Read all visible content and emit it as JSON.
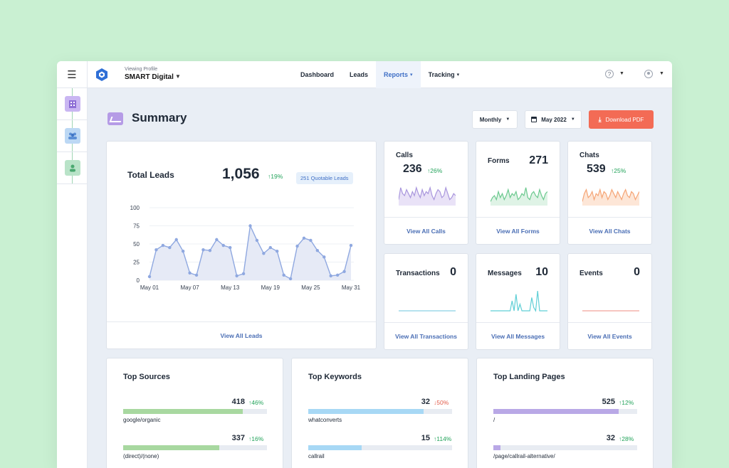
{
  "header": {
    "profile_caption": "Viewing Profile",
    "profile_name": "SMART Digital",
    "nav": [
      {
        "label": "Dashboard",
        "active": false,
        "caret": false
      },
      {
        "label": "Leads",
        "active": false,
        "caret": false
      },
      {
        "label": "Reports",
        "active": true,
        "caret": true
      },
      {
        "label": "Tracking",
        "active": false,
        "caret": true
      }
    ],
    "help_glyph": "?"
  },
  "sidebar": {
    "items": [
      {
        "icon": "building-icon",
        "color": "#c9b6f2"
      },
      {
        "icon": "users-icon",
        "color": "#bcd8f4"
      },
      {
        "icon": "user-icon",
        "color": "#b9e3c8"
      }
    ]
  },
  "summary": {
    "title": "Summary",
    "period_select": "Monthly",
    "date_select": "May 2022",
    "download_label": "Download PDF"
  },
  "total_leads": {
    "title": "Total Leads",
    "value": "1,056",
    "delta": "↑19%",
    "badge": "251 Quotable Leads",
    "footer": "View All Leads"
  },
  "chart_data": {
    "type": "area",
    "x": [
      "May 01",
      "May 02",
      "May 03",
      "May 04",
      "May 05",
      "May 06",
      "May 07",
      "May 08",
      "May 09",
      "May 10",
      "May 11",
      "May 12",
      "May 13",
      "May 14",
      "May 15",
      "May 16",
      "May 17",
      "May 18",
      "May 19",
      "May 20",
      "May 21",
      "May 22",
      "May 23",
      "May 24",
      "May 25",
      "May 26",
      "May 27",
      "May 28",
      "May 29",
      "May 30",
      "May 31"
    ],
    "xticks": [
      "May 01",
      "May 07",
      "May 13",
      "May 19",
      "May 25",
      "May 31"
    ],
    "values": [
      5,
      42,
      48,
      45,
      56,
      40,
      10,
      7,
      42,
      41,
      56,
      48,
      45,
      6,
      9,
      75,
      55,
      37,
      45,
      40,
      7,
      2,
      47,
      58,
      55,
      41,
      32,
      6,
      7,
      12,
      48
    ],
    "yticks": [
      "0",
      "25",
      "50",
      "75",
      "100"
    ],
    "ylim": [
      0,
      100
    ],
    "color": "#8fa8e0",
    "fill": "#e6eaf6",
    "grid": true
  },
  "metrics": [
    {
      "title": "Calls",
      "value": "236",
      "delta": "↑26%",
      "footer": "View All Calls",
      "color": "#a996dd",
      "fill": "#e9e2f7",
      "spark": [
        3,
        9,
        6,
        5,
        8,
        6,
        4,
        7,
        5,
        9,
        6,
        4,
        8,
        5,
        7,
        6,
        9,
        5,
        3,
        6,
        8,
        7,
        4,
        5,
        9,
        6,
        3,
        4,
        6,
        5
      ]
    },
    {
      "title": "Forms",
      "value": "271",
      "delta": "",
      "footer": "View All Forms",
      "color": "#6cc98f",
      "fill": "#dff3e6",
      "spark": [
        2,
        4,
        5,
        3,
        7,
        4,
        6,
        3,
        5,
        8,
        4,
        6,
        5,
        7,
        3,
        4,
        6,
        5,
        9,
        4,
        3,
        6,
        7,
        5,
        4,
        8,
        5,
        3,
        6,
        7
      ]
    },
    {
      "title": "Chats",
      "value": "539",
      "delta": "↑25%",
      "footer": "View All Chats",
      "color": "#f5a576",
      "fill": "#fde6d7",
      "spark": [
        2,
        6,
        8,
        4,
        5,
        7,
        3,
        6,
        5,
        8,
        4,
        7,
        6,
        3,
        5,
        8,
        6,
        4,
        7,
        5,
        3,
        6,
        8,
        5,
        4,
        7,
        6,
        3,
        5,
        7
      ]
    },
    {
      "title": "Transactions",
      "value": "0",
      "delta": "",
      "footer": "View All Transactions",
      "color": "#8bd0e3",
      "fill": "#ffffff",
      "spark": [
        0,
        0,
        0,
        0,
        0,
        0,
        0,
        0,
        0,
        0,
        0,
        0,
        0,
        0,
        0,
        0,
        0,
        0,
        0,
        0,
        0,
        0,
        0,
        0,
        0,
        0,
        0,
        0,
        0,
        0
      ]
    },
    {
      "title": "Messages",
      "value": "10",
      "delta": "",
      "footer": "View All Messages",
      "color": "#5fcfd6",
      "fill": "#ffffff",
      "spark": [
        0,
        0,
        0,
        0,
        0,
        0,
        0,
        0,
        0,
        0,
        0,
        3,
        0,
        5,
        0,
        2,
        0,
        0,
        0,
        0,
        0,
        4,
        1,
        0,
        6,
        0,
        0,
        0,
        0,
        0
      ]
    },
    {
      "title": "Events",
      "value": "0",
      "delta": "",
      "footer": "View All Events",
      "color": "#f2a59a",
      "fill": "#ffffff",
      "spark": [
        0,
        0,
        0,
        0,
        0,
        0,
        0,
        0,
        0,
        0,
        0,
        0,
        0,
        0,
        0,
        0,
        0,
        0,
        0,
        0,
        0,
        0,
        0,
        0,
        0,
        0,
        0,
        0,
        0,
        0
      ]
    }
  ],
  "lists": [
    {
      "title": "Top Sources",
      "color": "#a8d8a0",
      "rows": [
        {
          "value": "418",
          "delta": "↑46%",
          "dir": "up",
          "label": "google/organic",
          "fraction": 0.83
        },
        {
          "value": "337",
          "delta": "↑16%",
          "dir": "up",
          "label": "(direct)/(none)",
          "fraction": 0.67
        }
      ]
    },
    {
      "title": "Top Keywords",
      "color": "#a7d8f5",
      "rows": [
        {
          "value": "32",
          "delta": "↓50%",
          "dir": "down",
          "label": "whatconverts",
          "fraction": 0.8
        },
        {
          "value": "15",
          "delta": "↑114%",
          "dir": "up",
          "label": "callrail",
          "fraction": 0.37
        }
      ]
    },
    {
      "title": "Top Landing Pages",
      "color": "#b9a8e6",
      "rows": [
        {
          "value": "525",
          "delta": "↑12%",
          "dir": "up",
          "label": "/",
          "fraction": 0.87
        },
        {
          "value": "32",
          "delta": "↑28%",
          "dir": "up",
          "label": "/page/callrail-alternative/",
          "fraction": 0.05
        }
      ]
    }
  ]
}
